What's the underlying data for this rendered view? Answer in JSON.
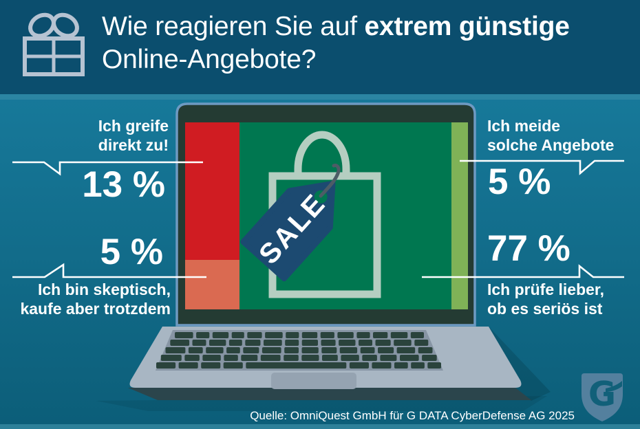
{
  "header": {
    "title_prefix": "Wie reagieren Sie auf ",
    "title_emphasis": "extrem günstige",
    "title_line2": "Online-Angebote?"
  },
  "callouts": {
    "grab": {
      "label1": "Ich greife",
      "label2": "direkt zu!",
      "value": "13 %"
    },
    "skeptical": {
      "value": "5 %",
      "label1": "Ich bin skeptisch,",
      "label2": "kaufe aber trotzdem"
    },
    "avoid": {
      "label1": "Ich meide",
      "label2": "solche Angebote",
      "value": "5 %"
    },
    "verify": {
      "value": "77 %",
      "label1": "Ich prüfe lieber,",
      "label2": "ob es seriös ist"
    }
  },
  "laptop_screen": {
    "sale_tag_text": "SALE"
  },
  "logo": {
    "letter": "G"
  },
  "source_line": "Quelle: OmniQuest GmbH für G DATA CyberDefense AG 2025",
  "colors": {
    "header_bg": "#0b4e6e",
    "body_top": "#17799a",
    "body_bottom": "#0c5e79",
    "accent_red": "#d01c22",
    "accent_salmon": "#da6a51",
    "accent_green": "#007750",
    "accent_light_green": "#7fb257",
    "tag_blue": "#1c4a71",
    "bag_outline": "#b5cec1",
    "callout_white": "#ffffff",
    "laptop_body": "#a8b6c3",
    "logo_shield": "#54809e"
  },
  "chart_data": {
    "type": "bar",
    "title": "Wie reagieren Sie auf extrem günstige Online-Angebote?",
    "categories": [
      "Ich greife direkt zu!",
      "Ich bin skeptisch, kaufe aber trotzdem",
      "Ich prüfe lieber, ob es seriös ist",
      "Ich meide solche Angebote"
    ],
    "values": [
      13,
      5,
      77,
      5
    ],
    "unit": "%",
    "series_colors": [
      "#d01c22",
      "#da6a51",
      "#007750",
      "#7fb257"
    ],
    "legend_position": "around-illustration",
    "source": "Quelle: OmniQuest GmbH für G DATA CyberDefense AG 2025"
  }
}
